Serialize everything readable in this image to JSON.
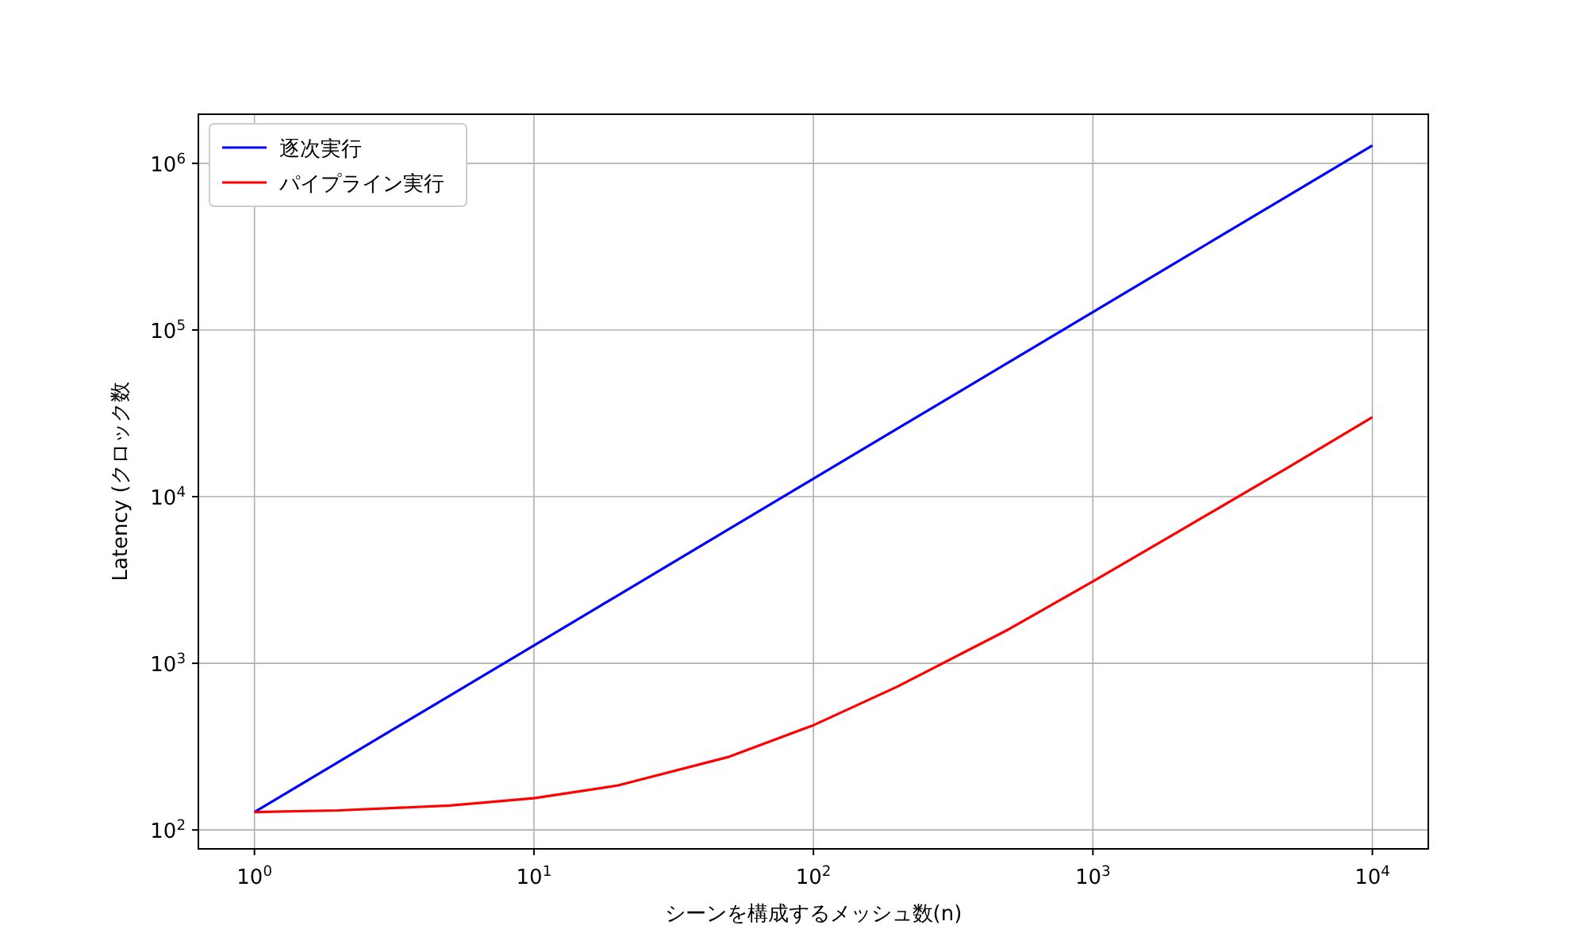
{
  "chart_data": {
    "type": "line",
    "xlabel": "シーンを構成するメッシュ数(n)",
    "ylabel": "Latency (クロック数",
    "log": "xy",
    "grid": true,
    "legend": "top left",
    "xlim": [
      0.63,
      15850
    ],
    "ylim": [
      77,
      1970000
    ],
    "xticks": [
      {
        "value": 1,
        "label": "10$^{0}$"
      },
      {
        "value": 10,
        "label": "10$^{1}$"
      },
      {
        "value": 100,
        "label": "10$^{2}$"
      },
      {
        "value": 1000,
        "label": "10$^{3}$"
      },
      {
        "value": 10000,
        "label": "10$^{4}$"
      }
    ],
    "yticks": [
      {
        "value": 100,
        "label": "10$^{2}$"
      },
      {
        "value": 1000,
        "label": "10$^{3}$"
      },
      {
        "value": 10000,
        "label": "10$^{4}$"
      },
      {
        "value": 100000,
        "label": "10$^{5}$"
      },
      {
        "value": 1000000,
        "label": "10$^{6}$"
      }
    ],
    "x": [
      1,
      2,
      5,
      10,
      20,
      50,
      100,
      200,
      500,
      1000,
      2000,
      5000,
      10000
    ],
    "series": [
      {
        "name": "逐次実行",
        "color": "#0000ff",
        "values": [
          128,
          256,
          640,
          1280,
          2560,
          6400,
          12800,
          25600,
          64000,
          128000,
          256000,
          640000,
          1280000
        ]
      },
      {
        "name": "パイプライン実行",
        "color": "#ff0000",
        "values": [
          128,
          131,
          140,
          155,
          185,
          275,
          425,
          725,
          1600,
          3100,
          6100,
          15000,
          30000
        ]
      }
    ]
  }
}
